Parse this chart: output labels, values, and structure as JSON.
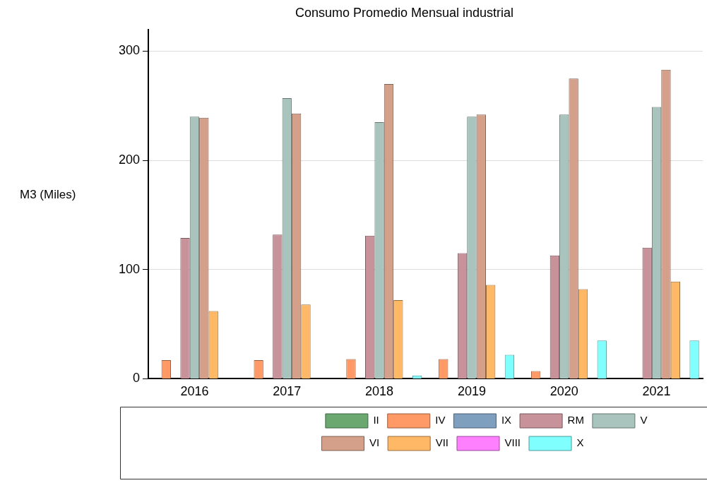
{
  "chart_data": {
    "type": "bar",
    "title": "Consumo Promedio Mensual industrial",
    "ylabel": "M3 (Miles)",
    "categories": [
      "2016",
      "2017",
      "2018",
      "2019",
      "2020",
      "2021"
    ],
    "series": [
      {
        "name": "II",
        "color": "#6aa870",
        "values": [
          null,
          null,
          null,
          null,
          null,
          null
        ]
      },
      {
        "name": "IV",
        "color": "#ff9966",
        "values": [
          17,
          17,
          18,
          18,
          7,
          null
        ]
      },
      {
        "name": "IX",
        "color": "#7f9fbf",
        "values": [
          null,
          null,
          null,
          null,
          null,
          null
        ]
      },
      {
        "name": "RM",
        "color": "#c7929a",
        "values": [
          129,
          132,
          131,
          115,
          113,
          120
        ]
      },
      {
        "name": "V",
        "color": "#a9c4bc",
        "values": [
          240,
          257,
          235,
          240,
          242,
          249
        ]
      },
      {
        "name": "VI",
        "color": "#d4a08a",
        "values": [
          239,
          243,
          270,
          242,
          275,
          283
        ]
      },
      {
        "name": "VII",
        "color": "#ffb866",
        "values": [
          62,
          68,
          72,
          86,
          82,
          89
        ]
      },
      {
        "name": "VIII",
        "color": "#ff80ff",
        "values": [
          null,
          null,
          null,
          null,
          null,
          null
        ]
      },
      {
        "name": "X",
        "color": "#80ffff",
        "values": [
          null,
          null,
          3,
          22,
          35,
          35
        ]
      }
    ],
    "ylim": [
      0,
      320
    ],
    "yticks": [
      0,
      100,
      200,
      300
    ],
    "grid": "y",
    "legend": "bottom"
  }
}
